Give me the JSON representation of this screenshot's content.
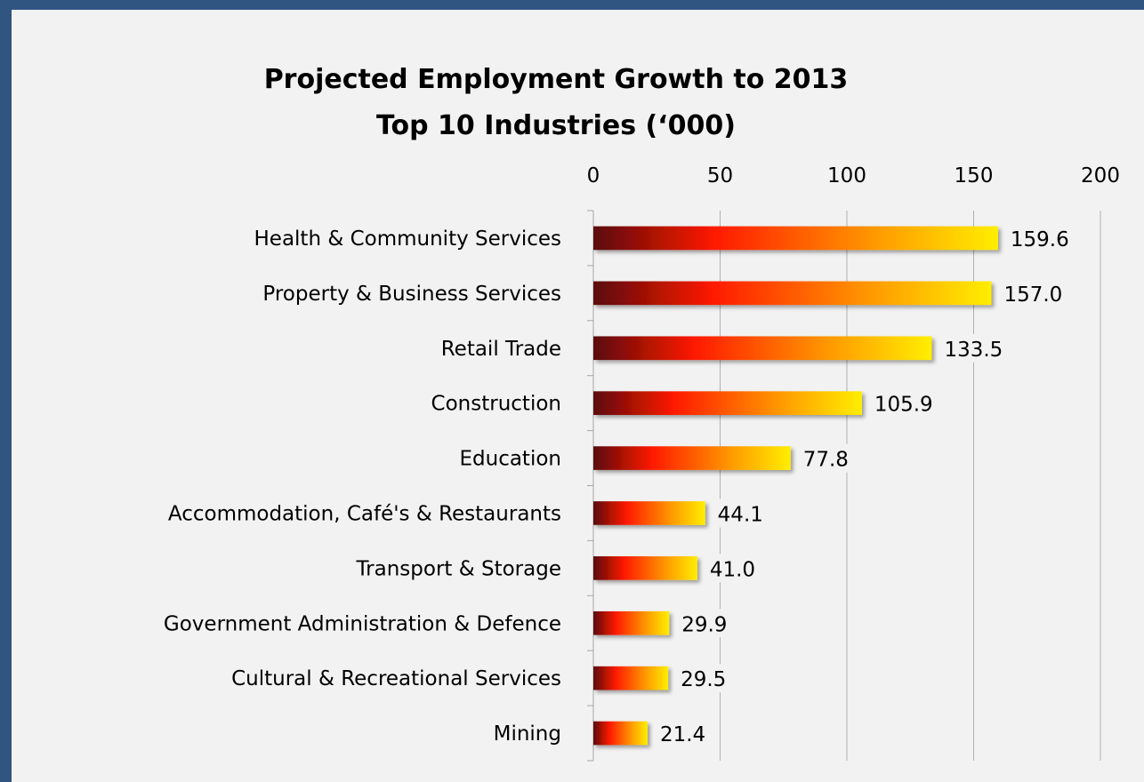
{
  "chart_data": {
    "type": "bar",
    "orientation": "horizontal",
    "title": [
      "Projected Employment Growth to 2013",
      "Top 10 Industries (‘000)"
    ],
    "categories": [
      "Health & Community Services",
      "Property & Business Services",
      "Retail Trade",
      "Construction",
      "Education",
      "Accommodation, Café's & Restaurants",
      "Transport & Storage",
      "Government Administration & Defence",
      "Cultural & Recreational Services",
      "Mining"
    ],
    "values": [
      159.6,
      157.0,
      133.5,
      105.9,
      77.8,
      44.1,
      41.0,
      29.9,
      29.5,
      21.4
    ],
    "value_labels": [
      "159.6",
      "157.0",
      "133.5",
      "105.9",
      "77.8",
      "44.1",
      "41.0",
      "29.9",
      "29.5",
      "21.4"
    ],
    "xlim": [
      0,
      200
    ],
    "xticks": [
      0,
      50,
      100,
      150,
      200
    ],
    "xtick_labels": [
      "0",
      "50",
      "100",
      "150",
      "200"
    ],
    "x_axis_position": "top",
    "grid": true,
    "legend": "none",
    "colors": {
      "bar_gradient": [
        "#5a0a0a",
        "#ff1a00",
        "#ff9a00",
        "#ffee00"
      ],
      "background": "#f2f2f2",
      "frame": "#2f5580"
    }
  }
}
